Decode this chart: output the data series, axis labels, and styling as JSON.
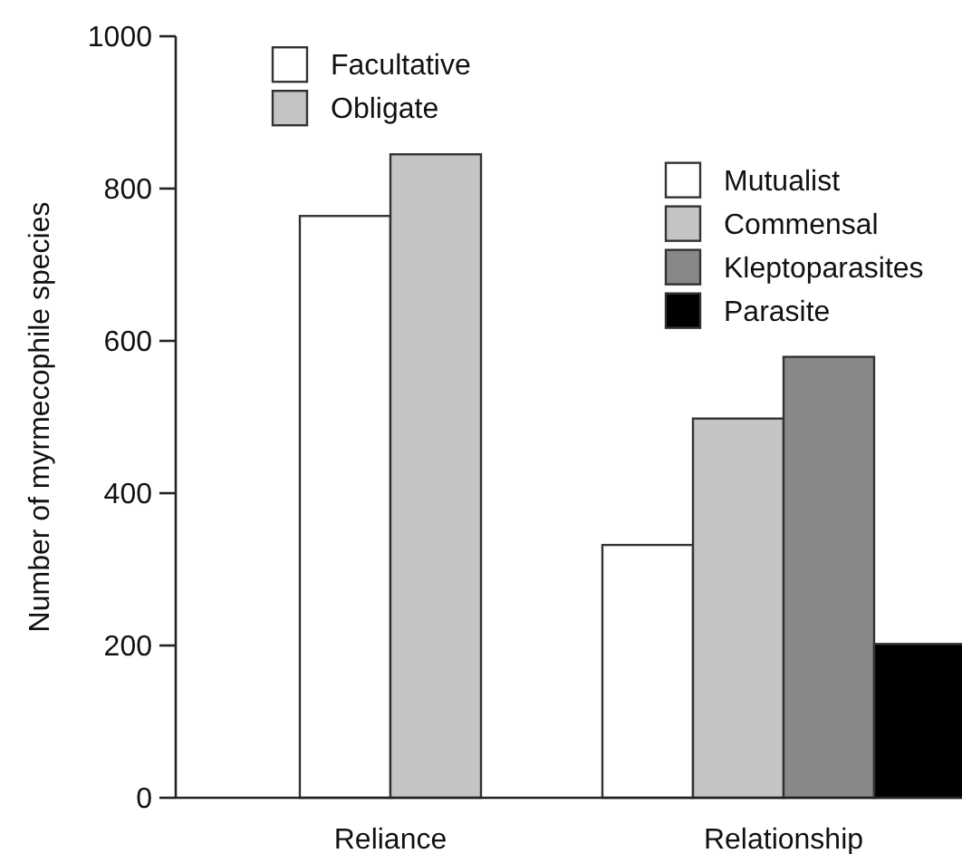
{
  "chart_data": {
    "type": "bar",
    "ylabel": "Number of myrmecophile species",
    "categories": [
      "Reliance",
      "Relationship"
    ],
    "ylim": [
      0,
      1000
    ],
    "yticks": [
      0,
      200,
      400,
      600,
      800,
      1000
    ],
    "legend": "top",
    "series": [
      {
        "name": "Facultative",
        "color": "#ffffff",
        "values": [
          764,
          null
        ]
      },
      {
        "name": "Obligate",
        "color": "#c4c4c4",
        "values": [
          845,
          null
        ]
      },
      {
        "name": "Mutualist",
        "color": "#ffffff",
        "values": [
          null,
          332
        ]
      },
      {
        "name": "Commensal",
        "color": "#c4c4c4",
        "values": [
          null,
          498
        ]
      },
      {
        "name": "Kleptoparasites",
        "color": "#888888",
        "values": [
          null,
          579
        ]
      },
      {
        "name": "Parasite",
        "color": "#000000",
        "values": [
          null,
          202
        ]
      }
    ]
  }
}
